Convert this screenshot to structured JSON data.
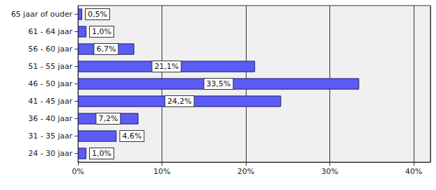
{
  "chart_data": {
    "type": "bar",
    "orientation": "horizontal",
    "categories": [
      "24 - 30 jaar",
      "31 - 35 jaar",
      "36 - 40 jaar",
      "41 - 45 jaar",
      "46 - 50 jaar",
      "51 - 55 jaar",
      "56 - 60 jaar",
      "61 - 64 jaar",
      "65 jaar of ouder"
    ],
    "values": [
      1.0,
      4.6,
      7.2,
      24.2,
      33.5,
      21.1,
      6.7,
      1.0,
      0.5
    ],
    "value_labels": [
      "1,0%",
      "4,6%",
      "7,2%",
      "24,2%",
      "33,5%",
      "21,1%",
      "6,7%",
      "1,0%",
      "0,5%"
    ],
    "data_labels": true,
    "color": "#5b5bf5",
    "xlim": [
      0,
      42
    ],
    "xticks": [
      {
        "value": 0,
        "label": "0%"
      },
      {
        "value": 10,
        "label": "10%"
      },
      {
        "value": 20,
        "label": "20%"
      },
      {
        "value": 30,
        "label": "30%"
      },
      {
        "value": 40,
        "label": "40%"
      }
    ],
    "grid": true
  }
}
